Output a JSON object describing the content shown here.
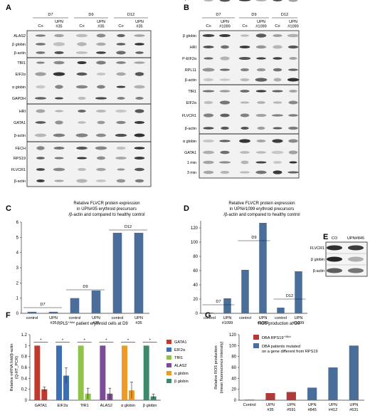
{
  "panels": {
    "A": {
      "letter": "A",
      "days": [
        "D7",
        "D9",
        "D12"
      ],
      "lanes": [
        "Co",
        "UPN #35",
        "Co",
        "UPN #35",
        "Co",
        "UPN #35"
      ],
      "groups": [
        [
          "ALAS2",
          "β globin",
          "β-actin"
        ],
        [
          "TfR1",
          "EIF2α",
          "α globin",
          "GAPDH"
        ],
        [
          "HRI",
          "GATA1",
          "β-actin"
        ],
        [
          "FECH",
          "RPS19",
          "FLVCR1",
          "β-actin"
        ]
      ]
    },
    "B": {
      "letter": "B",
      "days": [
        "D7",
        "D9",
        "D12"
      ],
      "lanes": [
        "Co",
        "UPN #1099",
        "Co",
        "UPN #1099",
        "Co",
        "UPN #1099"
      ],
      "groups": [
        [
          "β globin",
          "HRI",
          "P-EIF2α",
          "RPL11",
          "β-actin"
        ],
        [
          "TfR1",
          "EIF2α",
          "FLVCR1",
          "β-actin"
        ],
        [
          "α globin",
          "GATA1",
          "1 min",
          "3 min",
          "β-actin"
        ]
      ]
    },
    "C": {
      "letter": "C",
      "title": [
        "Relative FLVCR protein expression",
        "in UPN#35 erythroid precursors",
        "/β-actin and compared to healthy control"
      ]
    },
    "D": {
      "letter": "D",
      "title": [
        "Relative FLVCR protein expression",
        "in UPN#1099 erythroid precursors",
        "/β-actin and compared to healthy control"
      ]
    },
    "E": {
      "letter": "E",
      "lanes": [
        "CO",
        "UPN#845"
      ],
      "rows": [
        "FLVCR1",
        "β globin",
        "β-actin"
      ]
    },
    "F": {
      "letter": "F",
      "title": "RPL5+/Mut patient erythroid cells at D9",
      "ylabel": "Relative mRNA fold/β-actin",
      "ylabel2": "(Q-RT_PCR)",
      "sig": "*"
    },
    "G": {
      "letter": "G",
      "title": "ROS production at D9",
      "ylabel": "Relative ROS production",
      "ylabel2": "(mean fluorescence intensity)",
      "legend": [
        "DBA RPS19+/Mut",
        "DBA patients mutated",
        "on a gene different from RPS19"
      ]
    }
  },
  "chart_data": [
    {
      "panel": "C",
      "type": "bar",
      "categories": [
        "control",
        "UPN #35",
        "control",
        "UPN #35",
        "control",
        "UPN #35"
      ],
      "values": [
        0.1,
        0.1,
        1.0,
        1.5,
        5.3,
        5.3
      ],
      "groups": [
        "D7",
        "D9",
        "D12"
      ],
      "ylim": [
        0,
        6
      ],
      "yticks": [
        0,
        1,
        2,
        3,
        4,
        5,
        6
      ],
      "color": "#4a6d99"
    },
    {
      "panel": "D",
      "type": "bar",
      "categories": [
        "control",
        "UPN #1099",
        "control",
        "UPN #1099",
        "control",
        "UPN #1099"
      ],
      "values": [
        1,
        21,
        61,
        127,
        8,
        59
      ],
      "groups": [
        "D7",
        "D9",
        "D12"
      ],
      "ylim": [
        0,
        130
      ],
      "yticks": [
        0,
        20,
        40,
        60,
        80,
        100,
        120
      ],
      "color": "#4a6d99"
    },
    {
      "panel": "F",
      "type": "bar",
      "categories": [
        "GATA1",
        "EIF2α",
        "TfR1",
        "ALAS2",
        "α globin",
        "β globin"
      ],
      "series": [
        {
          "name": "GATA1",
          "color": "#c0392b"
        },
        {
          "name": "EIF2α",
          "color": "#3d6fb5"
        },
        {
          "name": "TfR1",
          "color": "#8fc34a"
        },
        {
          "name": "ALAS2",
          "color": "#7d4c99"
        },
        {
          "name": "α globin",
          "color": "#ef9a26"
        },
        {
          "name": "β globin",
          "color": "#3d8a6a"
        }
      ],
      "control": [
        1,
        1,
        1,
        1,
        1,
        1
      ],
      "patient": [
        0.2,
        0.45,
        0.12,
        0.12,
        0.18,
        0.07
      ],
      "patient_err": [
        0.04,
        0.14,
        0.1,
        0.1,
        0.15,
        0.04
      ],
      "ylim": [
        0,
        1.2
      ],
      "yticks": [
        0,
        0.2,
        0.4,
        0.6,
        0.8,
        1,
        1.2
      ]
    },
    {
      "panel": "G",
      "type": "bar",
      "categories": [
        "Control",
        "UPN #35",
        "UPN #591",
        "UPN #845",
        "UPN #412",
        "UPN #631"
      ],
      "values": [
        1,
        13,
        15,
        23,
        60,
        100
      ],
      "colors": [
        "#b03a3a",
        "#b03a3a",
        "#b03a3a",
        "#4a6d99",
        "#4a6d99",
        "#4a6d99"
      ],
      "ylim": [
        0,
        120
      ],
      "yticks": [
        0,
        20,
        40,
        60,
        80,
        100,
        120
      ],
      "legend_colors": [
        "#b03a3a",
        "#4a6d99"
      ]
    }
  ]
}
